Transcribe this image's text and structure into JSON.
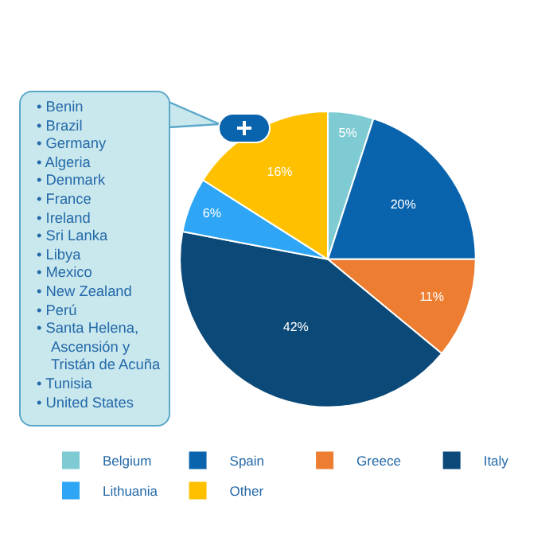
{
  "chart_data": {
    "type": "pie",
    "categories": [
      "Belgium",
      "Spain",
      "Greece",
      "Italy",
      "Lithuania",
      "Other"
    ],
    "values": [
      5,
      20,
      11,
      42,
      6,
      16
    ],
    "value_labels": [
      "5%",
      "20%",
      "11%",
      "42%",
      "6%",
      "16%"
    ],
    "colors": [
      "#7ecbd3",
      "#0a64ad",
      "#ed7d31",
      "#0b4a78",
      "#2ea6f5",
      "#ffc000"
    ],
    "legend": "bottom",
    "annotations": [
      "• Benin",
      "• Brazil",
      "• Germany",
      "• Algeria",
      "• Denmark",
      "• France",
      "• Ireland",
      "• Sri Lanka",
      "• Libya",
      "• Mexico",
      "• New Zealand",
      "• Perú",
      "• Santa Helena, Ascensión y Tristán de Acuña",
      "• Tunisia",
      "• United States"
    ]
  }
}
